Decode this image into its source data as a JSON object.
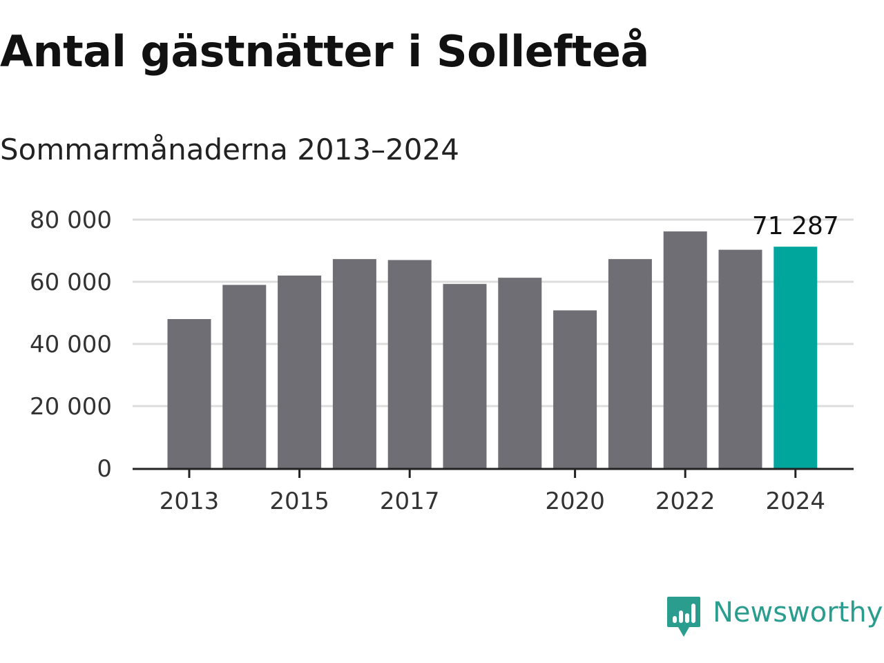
{
  "title": "Antal gästnätter i Sollefteå",
  "subtitle": "Sommarmånaderna 2013–2024",
  "brand": {
    "name": "Newsworthy",
    "icon": "newsworthy-logo-icon",
    "color": "#2a9d8f"
  },
  "chart_data": {
    "type": "bar",
    "title": "Antal gästnätter i Sollefteå",
    "subtitle": "Sommarmånaderna 2013–2024",
    "xlabel": "",
    "ylabel": "",
    "categories": [
      "2013",
      "2014",
      "2015",
      "2016",
      "2017",
      "2018",
      "2019",
      "2020",
      "2021",
      "2022",
      "2023",
      "2024"
    ],
    "values": [
      48000,
      59000,
      62000,
      67300,
      67000,
      59300,
      61300,
      50800,
      67300,
      76200,
      70300,
      71287
    ],
    "x_tick_labels": [
      "2013",
      "",
      "2015",
      "",
      "2017",
      "",
      "",
      "2020",
      "",
      "2022",
      "",
      "2024"
    ],
    "y_ticks": [
      0,
      20000,
      40000,
      60000,
      80000
    ],
    "y_tick_labels": [
      "0",
      "20 000",
      "40 000",
      "60 000",
      "80 000"
    ],
    "ylim": [
      0,
      80000
    ],
    "grid": true,
    "legend": "none",
    "highlight_index": 11,
    "highlight_label": "71 287",
    "colors": {
      "bar": "#6f6e74",
      "highlight": "#00a69c",
      "grid": "#dddddd",
      "axis": "#222222"
    }
  }
}
